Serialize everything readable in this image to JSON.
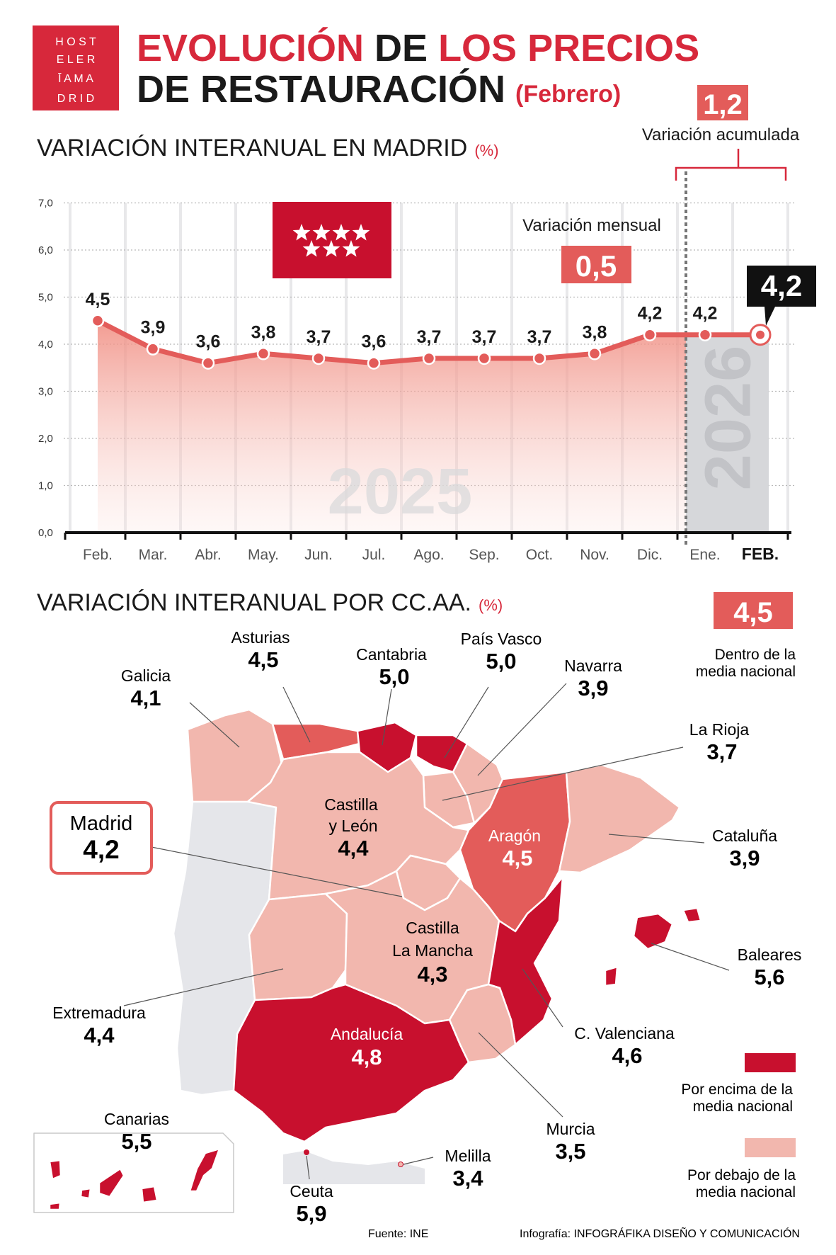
{
  "brand": {
    "logo_lines": [
      "H O S T",
      "E L E R",
      "Ī A M A",
      "D R I D"
    ],
    "red": "#d7283b",
    "dark_red": "#c8102e",
    "pink": "#f2b7ae",
    "mid_red": "#e35c5a",
    "grey": "#e5e6ea"
  },
  "header": {
    "title_part1": "EVOLUCIÓN",
    "title_part2": " DE ",
    "title_part3": "LOS PRECIOS",
    "title_line2": "DE RESTAURACIÓN",
    "title_month": "(Febrero)"
  },
  "chart_section": {
    "subtitle": "VARIACIÓN INTERANUAL EN MADRID",
    "unit": "(%)",
    "accumulated_value": "1,2",
    "accumulated_label": "Variación acumulada",
    "monthly_label": "Variación mensual",
    "monthly_value": "0,5",
    "current_value": "4,2",
    "year_2025": "2025",
    "year_2026": "2026",
    "flag_icon": "madrid-flag-stars-icon"
  },
  "chart_data": {
    "type": "area",
    "title": "VARIACIÓN INTERANUAL EN MADRID",
    "ylabel": "(%)",
    "categories": [
      "Feb.",
      "Mar.",
      "Abr.",
      "May.",
      "Jun.",
      "Jul.",
      "Ago.",
      "Sep.",
      "Oct.",
      "Nov.",
      "Dic.",
      "Ene.",
      "FEB."
    ],
    "values": [
      4.5,
      3.9,
      3.6,
      3.8,
      3.7,
      3.6,
      3.7,
      3.7,
      3.7,
      3.8,
      4.2,
      4.2,
      4.2
    ],
    "value_labels": [
      "4,5",
      "3,9",
      "3,6",
      "3,8",
      "3,7",
      "3,6",
      "3,7",
      "3,7",
      "3,7",
      "3,8",
      "4,2",
      "4,2",
      "4,2"
    ],
    "yticks": [
      "0,0",
      "1,0",
      "2,0",
      "3,0",
      "4,0",
      "5,0",
      "6,0",
      "7,0"
    ],
    "ylim": [
      0,
      7
    ],
    "grid": true,
    "highlight_index": 12
  },
  "map_section": {
    "subtitle": "VARIACIÓN INTERANUAL POR CC.AA.",
    "unit": "(%)",
    "national_value": "4,5",
    "national_label_1": "Dentro de la",
    "national_label_2": "media nacional",
    "legend_above_1": "Por encima de la",
    "legend_above_2": "media nacional",
    "legend_below_1": "Por debajo de la",
    "legend_below_2": "media nacional",
    "regions": [
      {
        "name": "Galicia",
        "value": "4,1"
      },
      {
        "name": "Asturias",
        "value": "4,5"
      },
      {
        "name": "Cantabria",
        "value": "5,0"
      },
      {
        "name": "País Vasco",
        "value": "5,0"
      },
      {
        "name": "Navarra",
        "value": "3,9"
      },
      {
        "name": "La Rioja",
        "value": "3,7"
      },
      {
        "name": "Cataluña",
        "value": "3,9"
      },
      {
        "name": "Castilla y León",
        "name_1": "Castilla",
        "name_2": "y León",
        "value": "4,4"
      },
      {
        "name": "Aragón",
        "value": "4,5"
      },
      {
        "name": "Madrid",
        "value": "4,2"
      },
      {
        "name": "Castilla La Mancha",
        "name_1": "Castilla",
        "name_2": "La Mancha",
        "value": "4,3"
      },
      {
        "name": "Extremadura",
        "value": "4,4"
      },
      {
        "name": "Baleares",
        "value": "5,6"
      },
      {
        "name": "C. Valenciana",
        "value": "4,6"
      },
      {
        "name": "Andalucía",
        "value": "4,8"
      },
      {
        "name": "Murcia",
        "value": "3,5"
      },
      {
        "name": "Canarias",
        "value": "5,5"
      },
      {
        "name": "Ceuta",
        "value": "5,9"
      },
      {
        "name": "Melilla",
        "value": "3,4"
      }
    ]
  },
  "footer": {
    "source": "Fuente: INE",
    "credit_prefix": "Infografía: ",
    "credit_name": "INFOGRÁFIKA DISEÑO Y COMUNICACIÓN"
  }
}
